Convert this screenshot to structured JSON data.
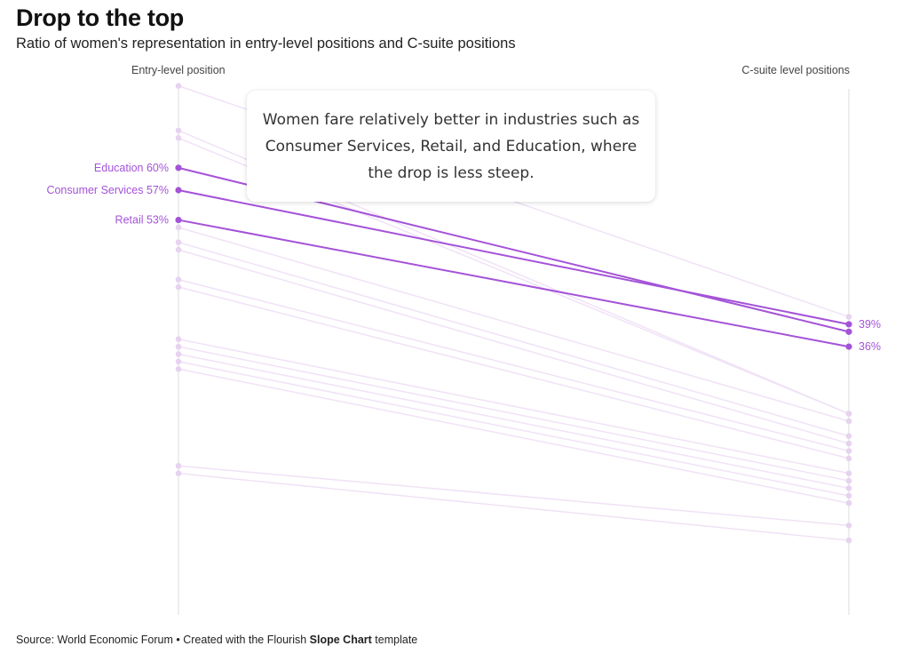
{
  "header": {
    "title": "Drop to the top",
    "subtitle": "Ratio of women's representation in entry-level positions and C-suite positions"
  },
  "annotation": "Women fare relatively better in industries such as Consumer Services, Retail, and Education, where the drop is less steep.",
  "footer": {
    "prefix": "Source: World Economic Forum • Created with the Flourish ",
    "template_name": "Slope Chart",
    "suffix": " template"
  },
  "colors": {
    "highlight": "#a453d8",
    "muted_line": "#f0e2f6",
    "muted_dot": "#e6d3ef",
    "axis": "#dddddd"
  },
  "chart_data": {
    "type": "slope",
    "x_labels": [
      "Entry-level position",
      "C-suite level positions"
    ],
    "ylim": [
      0,
      70
    ],
    "highlighted": [
      {
        "name": "Education",
        "start": 60,
        "end": 38,
        "start_label": "Education 60%",
        "end_label": ""
      },
      {
        "name": "Consumer Services",
        "start": 57,
        "end": 39,
        "start_label": "Consumer Services 57%",
        "end_label": "39%"
      },
      {
        "name": "Retail",
        "start": 53,
        "end": 36,
        "start_label": "Retail 53%",
        "end_label": "36%"
      }
    ],
    "other_series": [
      {
        "start": 71,
        "end": 40
      },
      {
        "start": 65,
        "end": 27
      },
      {
        "start": 64,
        "end": 27
      },
      {
        "start": 52,
        "end": 26
      },
      {
        "start": 50,
        "end": 24
      },
      {
        "start": 49,
        "end": 23
      },
      {
        "start": 45,
        "end": 22
      },
      {
        "start": 44,
        "end": 21
      },
      {
        "start": 37,
        "end": 19
      },
      {
        "start": 36,
        "end": 18
      },
      {
        "start": 35,
        "end": 17
      },
      {
        "start": 34,
        "end": 16
      },
      {
        "start": 33,
        "end": 15
      },
      {
        "start": 20,
        "end": 12
      },
      {
        "start": 19,
        "end": 10
      }
    ]
  }
}
